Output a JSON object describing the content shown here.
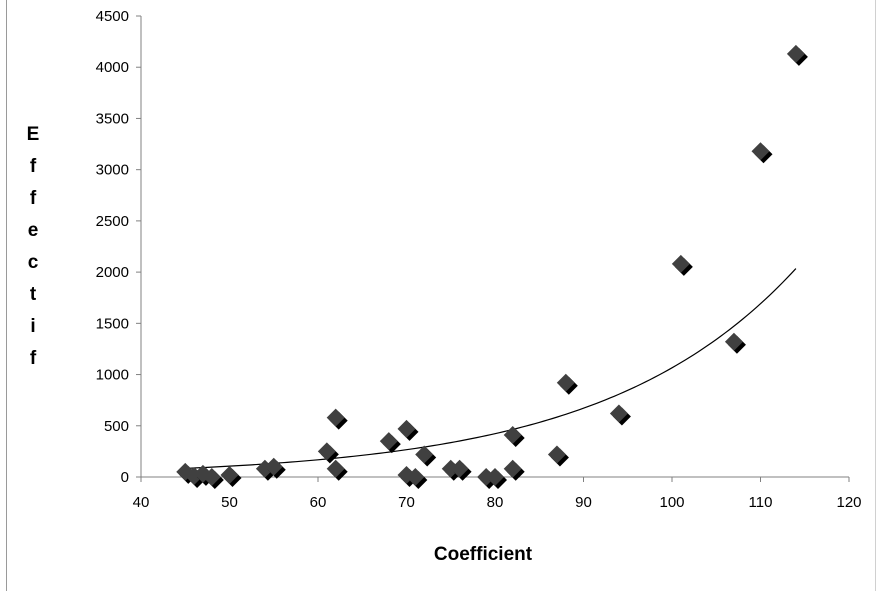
{
  "chart_data": {
    "type": "scatter",
    "title": "",
    "xlabel": "Coefficient",
    "ylabel": "Effectif",
    "xlim": [
      40,
      120
    ],
    "ylim": [
      0,
      4500
    ],
    "x_ticks": [
      40,
      50,
      60,
      70,
      80,
      90,
      100,
      110,
      120
    ],
    "y_ticks": [
      0,
      500,
      1000,
      1500,
      2000,
      2500,
      3000,
      3500,
      4000,
      4500
    ],
    "grid": false,
    "legend": "none",
    "marker": "diamond",
    "marker_color": "#404040",
    "trendline": {
      "type": "exponential",
      "a": 10.5,
      "b": 0.0462,
      "x_range": [
        45,
        114
      ],
      "color": "#000000"
    },
    "series": [
      {
        "x": [
          45,
          46,
          47,
          48,
          50,
          54,
          55,
          61,
          62,
          62,
          68,
          70,
          70,
          71,
          72,
          75,
          76,
          79,
          80,
          82,
          82,
          87,
          88,
          94,
          101,
          107,
          110,
          114
        ],
        "y": [
          50,
          10,
          30,
          0,
          20,
          80,
          100,
          250,
          580,
          80,
          350,
          470,
          20,
          0,
          220,
          80,
          80,
          0,
          0,
          80,
          410,
          220,
          920,
          620,
          2080,
          1320,
          3180,
          4130
        ]
      }
    ]
  }
}
